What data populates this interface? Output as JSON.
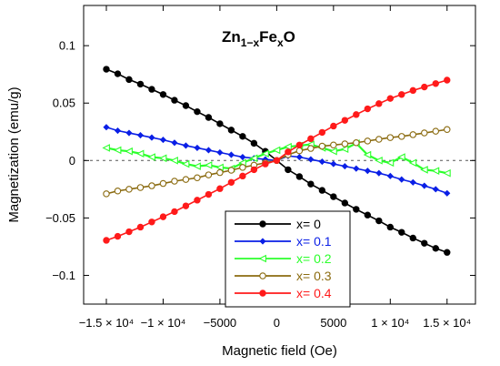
{
  "chart_data": {
    "type": "line",
    "title": {
      "base": "Zn",
      "sub1": "1−x",
      "mid": "Fe",
      "sub2": "x",
      "end": "O"
    },
    "xlabel": "Magnetic field (Oe)",
    "ylabel": "Magnetization (emu/g)",
    "xlim": [
      -17000,
      17500
    ],
    "ylim": [
      -0.125,
      0.135
    ],
    "x_ticks": [
      {
        "value": -15000,
        "label": "−1.5 × 10⁴"
      },
      {
        "value": -10000,
        "label": "−1 × 10⁴"
      },
      {
        "value": -5000,
        "label": "−5000"
      },
      {
        "value": 0,
        "label": "0"
      },
      {
        "value": 5000,
        "label": "5000"
      },
      {
        "value": 10000,
        "label": "1 × 10⁴"
      },
      {
        "value": 15000,
        "label": "1.5 × 10⁴"
      }
    ],
    "y_ticks": [
      {
        "value": 0.1,
        "label": "0.1"
      },
      {
        "value": 0.05,
        "label": "0.05"
      },
      {
        "value": 0,
        "label": "0"
      },
      {
        "value": -0.05,
        "label": "−0.05"
      },
      {
        "value": -0.1,
        "label": "−0.1"
      }
    ],
    "zero_line": "dashed",
    "grid": false,
    "legend_position": "bottom-center",
    "series": [
      {
        "name": "x= 0",
        "color": "#000000",
        "marker": "circle-filled",
        "x": [
          -15000,
          -14000,
          -13000,
          -12000,
          -11000,
          -10000,
          -9000,
          -8000,
          -7000,
          -6000,
          -5000,
          -4000,
          -3000,
          -2000,
          -1000,
          0,
          1000,
          2000,
          3000,
          4000,
          5000,
          6000,
          7000,
          8000,
          9000,
          10000,
          11000,
          12000,
          13000,
          14000,
          15000
        ],
        "y": [
          0.0795,
          0.0755,
          0.0705,
          0.0665,
          0.062,
          0.0575,
          0.0525,
          0.0478,
          0.0425,
          0.0375,
          0.032,
          0.0265,
          0.021,
          0.015,
          0.008,
          0.0,
          -0.008,
          -0.014,
          -0.0205,
          -0.026,
          -0.0315,
          -0.037,
          -0.0425,
          -0.0475,
          -0.0525,
          -0.058,
          -0.0625,
          -0.0675,
          -0.072,
          -0.0765,
          -0.08
        ]
      },
      {
        "name": "x= 0.1",
        "color": "#0a1fe6",
        "marker": "diamond-filled",
        "x": [
          -15000,
          -14000,
          -13000,
          -12000,
          -11000,
          -10000,
          -9000,
          -8000,
          -7000,
          -6000,
          -5000,
          -4000,
          -3000,
          -2000,
          -1000,
          0,
          1000,
          2000,
          3000,
          4000,
          5000,
          6000,
          7000,
          8000,
          9000,
          10000,
          11000,
          12000,
          13000,
          14000,
          15000
        ],
        "y": [
          0.029,
          0.026,
          0.024,
          0.022,
          0.02,
          0.018,
          0.0155,
          0.013,
          0.011,
          0.009,
          0.007,
          0.005,
          0.003,
          0.002,
          0.001,
          0.0,
          0.004,
          0.003,
          0.001,
          -0.001,
          -0.003,
          -0.005,
          -0.007,
          -0.009,
          -0.011,
          -0.0135,
          -0.0165,
          -0.019,
          -0.022,
          -0.025,
          -0.0285
        ]
      },
      {
        "name": "x= 0.2",
        "color": "#2bff2b",
        "marker": "triangle-left-open",
        "x": [
          -15000,
          -14000,
          -13000,
          -12000,
          -11000,
          -10000,
          -9000,
          -8000,
          -7000,
          -6000,
          -5000,
          -4000,
          -3000,
          -2000,
          -1000,
          0,
          1000,
          2000,
          3000,
          4000,
          5000,
          6000,
          7000,
          8000,
          9000,
          10000,
          11000,
          12000,
          13000,
          14000,
          15000
        ],
        "y": [
          0.011,
          0.009,
          0.008,
          0.006,
          0.003,
          0.002,
          0.0,
          -0.003,
          -0.005,
          -0.004,
          -0.006,
          -0.007,
          -0.002,
          0.002,
          0.006,
          0.009,
          0.012,
          0.013,
          0.014,
          0.011,
          0.008,
          0.01,
          0.015,
          0.005,
          0.0,
          -0.002,
          0.003,
          -0.002,
          -0.008,
          -0.009,
          -0.011
        ]
      },
      {
        "name": "x= 0.3",
        "color": "#8b6b10",
        "marker": "circle-open",
        "x": [
          -15000,
          -14000,
          -13000,
          -12000,
          -11000,
          -10000,
          -9000,
          -8000,
          -7000,
          -6000,
          -5000,
          -4000,
          -3000,
          -2000,
          -1000,
          0,
          1000,
          2000,
          3000,
          4000,
          5000,
          6000,
          7000,
          8000,
          9000,
          10000,
          11000,
          12000,
          13000,
          14000,
          15000
        ],
        "y": [
          -0.029,
          -0.0265,
          -0.025,
          -0.0235,
          -0.022,
          -0.02,
          -0.018,
          -0.0165,
          -0.015,
          -0.0125,
          -0.0105,
          -0.0085,
          -0.006,
          -0.004,
          -0.002,
          0.0,
          0.005,
          0.0085,
          0.0105,
          0.0125,
          0.0135,
          0.0145,
          0.0155,
          0.017,
          0.0185,
          0.02,
          0.021,
          0.0225,
          0.024,
          0.0255,
          0.027
        ]
      },
      {
        "name": "x= 0.4",
        "color": "#ff1a1a",
        "marker": "circle-filled",
        "x": [
          -15000,
          -14000,
          -13000,
          -12000,
          -11000,
          -10000,
          -9000,
          -8000,
          -7000,
          -6000,
          -5000,
          -4000,
          -3000,
          -2000,
          -1000,
          0,
          1000,
          2000,
          3000,
          4000,
          5000,
          6000,
          7000,
          8000,
          9000,
          10000,
          11000,
          12000,
          13000,
          14000,
          15000
        ],
        "y": [
          -0.0695,
          -0.066,
          -0.062,
          -0.058,
          -0.0535,
          -0.049,
          -0.0445,
          -0.0395,
          -0.0345,
          -0.0295,
          -0.0245,
          -0.019,
          -0.0135,
          -0.008,
          -0.003,
          0.0,
          0.0075,
          0.0135,
          0.019,
          0.0245,
          0.03,
          0.035,
          0.04,
          0.045,
          0.0495,
          0.054,
          0.0575,
          0.061,
          0.064,
          0.067,
          0.07
        ]
      }
    ]
  }
}
